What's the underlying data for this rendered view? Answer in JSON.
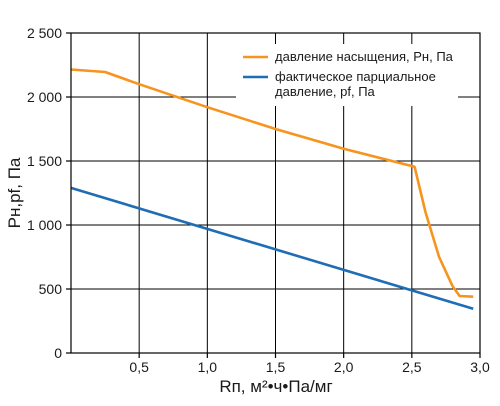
{
  "chart_data": {
    "type": "line",
    "xlabel": "Rп, м²•ч•Па/мг",
    "ylabel": "Pн,pf, Па",
    "xlim": [
      0,
      3.0
    ],
    "ylim": [
      0,
      2500
    ],
    "grid": true,
    "legend_position": "top-right",
    "x_ticks": [
      {
        "value": 0.5,
        "label": "0,5"
      },
      {
        "value": 1.0,
        "label": "1,0"
      },
      {
        "value": 1.5,
        "label": "1,5"
      },
      {
        "value": 2.0,
        "label": "2,0"
      },
      {
        "value": 2.5,
        "label": "2,5"
      },
      {
        "value": 3.0,
        "label": "3,0"
      }
    ],
    "y_ticks": [
      {
        "value": 0,
        "label": "0"
      },
      {
        "value": 500,
        "label": "500"
      },
      {
        "value": 1000,
        "label": "1 000"
      },
      {
        "value": 1500,
        "label": "1 500"
      },
      {
        "value": 2000,
        "label": "2 000"
      },
      {
        "value": 2500,
        "label": "2 500"
      }
    ],
    "series": [
      {
        "name": "давление насыщения, Pн, Па",
        "legend_lines": [
          "давление насыщения, Pн, Па"
        ],
        "color": "#f7941d",
        "points": [
          [
            0.0,
            2215
          ],
          [
            0.25,
            2195
          ],
          [
            0.5,
            2100
          ],
          [
            1.0,
            1920
          ],
          [
            1.5,
            1750
          ],
          [
            2.0,
            1595
          ],
          [
            2.52,
            1455
          ],
          [
            2.6,
            1100
          ],
          [
            2.7,
            750
          ],
          [
            2.8,
            520
          ],
          [
            2.85,
            445
          ],
          [
            2.95,
            440
          ]
        ]
      },
      {
        "name": "фактическое парциальное давление, pf, Па",
        "legend_lines": [
          "фактическое парциальное",
          "давление, pf, Па"
        ],
        "color": "#1f6db5",
        "points": [
          [
            0.0,
            1290
          ],
          [
            2.95,
            345
          ]
        ]
      }
    ]
  }
}
